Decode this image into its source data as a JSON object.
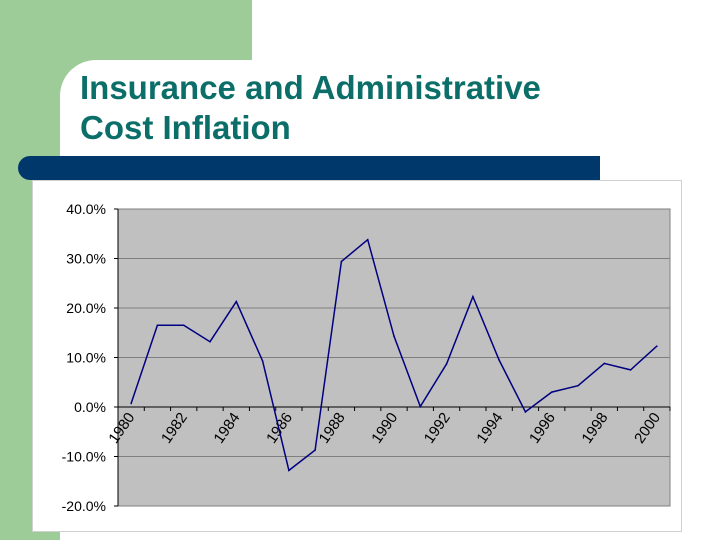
{
  "slide": {
    "title_line1": "Insurance and Administrative",
    "title_line2": "Cost Inflation"
  },
  "colors": {
    "green_band": "#9dcc98",
    "title_text": "#0b6e69",
    "divider_bar": "#00386b",
    "plot_background": "#c0c0c0",
    "series_line": "#000080",
    "gridline": "#7f7f7f"
  },
  "chart_data": {
    "type": "line",
    "title": "",
    "xlabel": "",
    "ylabel": "",
    "x": [
      1980,
      1981,
      1982,
      1983,
      1984,
      1985,
      1986,
      1987,
      1988,
      1989,
      1990,
      1991,
      1992,
      1993,
      1994,
      1995,
      1996,
      1997,
      1998,
      1999,
      2000
    ],
    "x_tick_labels": [
      "1980",
      "1982",
      "1984",
      "1986",
      "1988",
      "1990",
      "1992",
      "1994",
      "1996",
      "1998",
      "2000"
    ],
    "series": [
      {
        "values": [
          0.7,
          16.5,
          16.5,
          13.2,
          21.3,
          9.3,
          -12.8,
          -8.7,
          29.4,
          33.8,
          14.3,
          0.1,
          8.7,
          22.3,
          9.5,
          -1.0,
          3.0,
          4.3,
          8.8,
          7.5,
          12.3
        ]
      }
    ],
    "ylim": [
      -20,
      40
    ],
    "y_ticks": [
      -20,
      -10,
      0,
      10,
      20,
      30,
      40
    ],
    "y_tick_labels": [
      "-20.0%",
      "-10.0%",
      "0.0%",
      "10.0%",
      "20.0%",
      "30.0%",
      "40.0%"
    ],
    "grid": true,
    "legend": "none"
  }
}
